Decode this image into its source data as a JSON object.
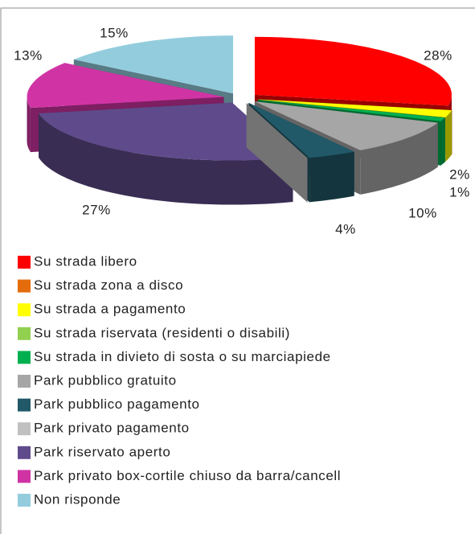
{
  "chart_data": {
    "type": "pie3d",
    "categories": [
      "Su strada libero",
      "Su strada zona a disco",
      "Su strada a pagamento",
      "Su strada riservata (residenti o disabili)",
      "Su strada in divieto di sosta o su marciapiede",
      "Park pubblico gratuito",
      "Park pubblico pagamento",
      "Park privato pagamento",
      "Park riservato aperto",
      "Park privato box-cortile chiuso da barra/cancell",
      "Non risponde"
    ],
    "values": [
      28,
      0,
      2,
      0,
      1,
      10,
      4,
      0,
      27,
      13,
      15
    ],
    "value_labels": [
      "28%",
      null,
      "2%",
      null,
      "1%",
      "10%",
      "4%",
      null,
      "27%",
      "13%",
      "15%"
    ],
    "colors": [
      "#ff0000",
      "#e46c0a",
      "#ffff00",
      "#92d050",
      "#00b050",
      "#a6a6a6",
      "#215968",
      "#c0c0c0",
      "#5f4b8b",
      "#d034a4",
      "#93cddd"
    ],
    "legend": "bottom"
  }
}
